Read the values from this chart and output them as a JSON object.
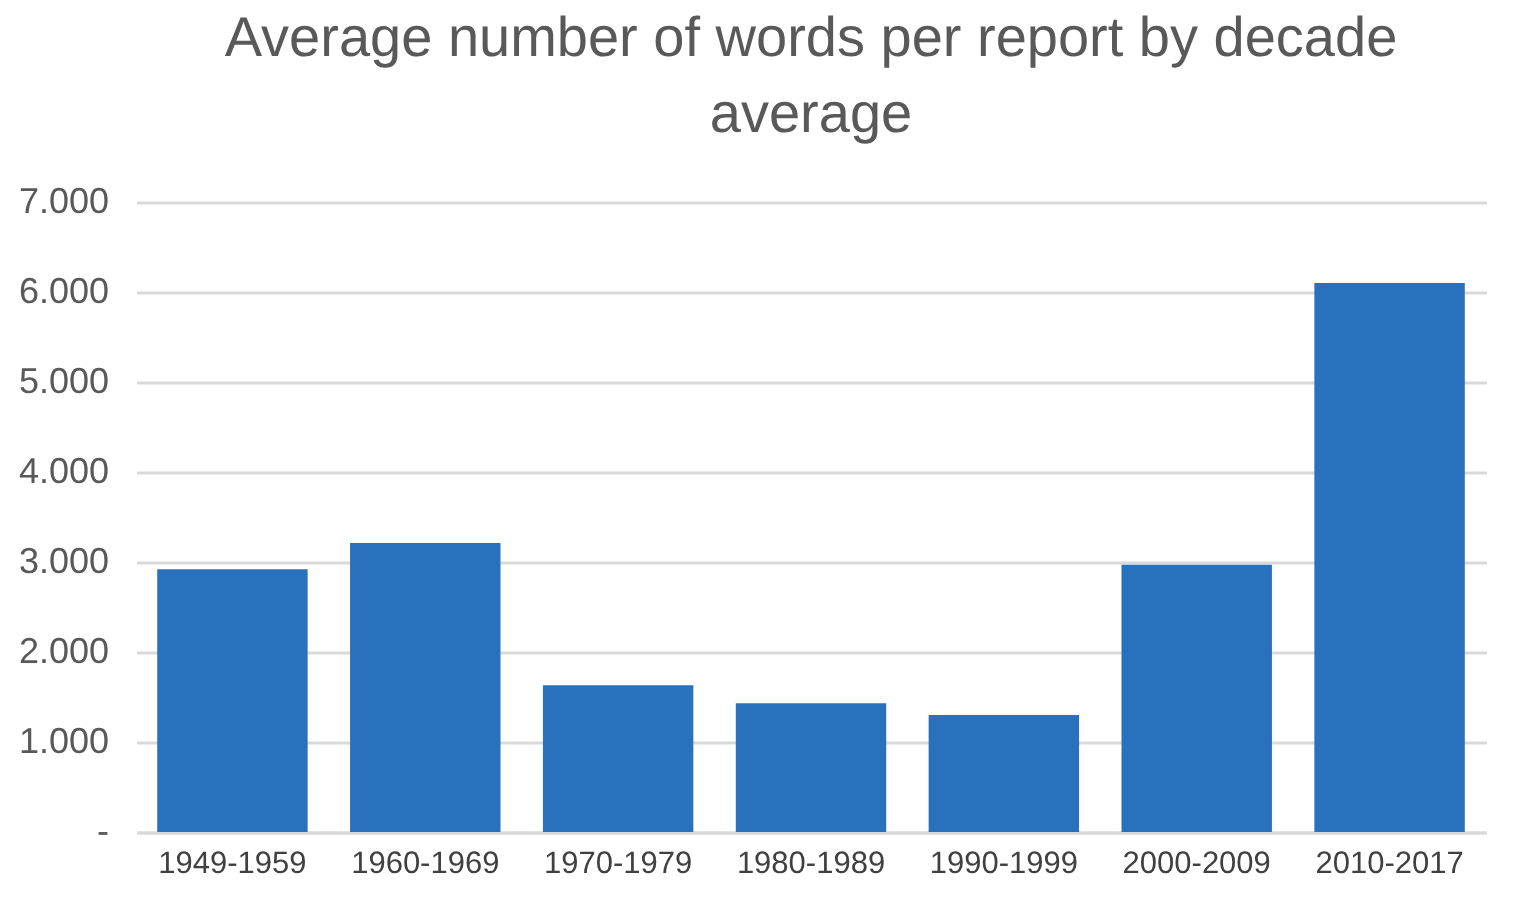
{
  "chart_data": {
    "type": "bar",
    "title": "Average number of words per report by decade average",
    "categories": [
      "1949-1959",
      "1960-1969",
      "1970-1979",
      "1980-1989",
      "1990-1999",
      "2000-2009",
      "2010-2017"
    ],
    "values": [
      2920,
      3210,
      1630,
      1430,
      1300,
      2970,
      6100
    ],
    "color": "#2a71bd",
    "ylim": [
      0,
      7000
    ],
    "yticks": [
      {
        "value": 0,
        "label": "-"
      },
      {
        "value": 1000,
        "label": "1.000"
      },
      {
        "value": 2000,
        "label": "2.000"
      },
      {
        "value": 3000,
        "label": "3.000"
      },
      {
        "value": 4000,
        "label": "4.000"
      },
      {
        "value": 5000,
        "label": "5.000"
      },
      {
        "value": 6000,
        "label": "6.000"
      },
      {
        "value": 7000,
        "label": "7.000"
      }
    ],
    "grid": "y"
  }
}
